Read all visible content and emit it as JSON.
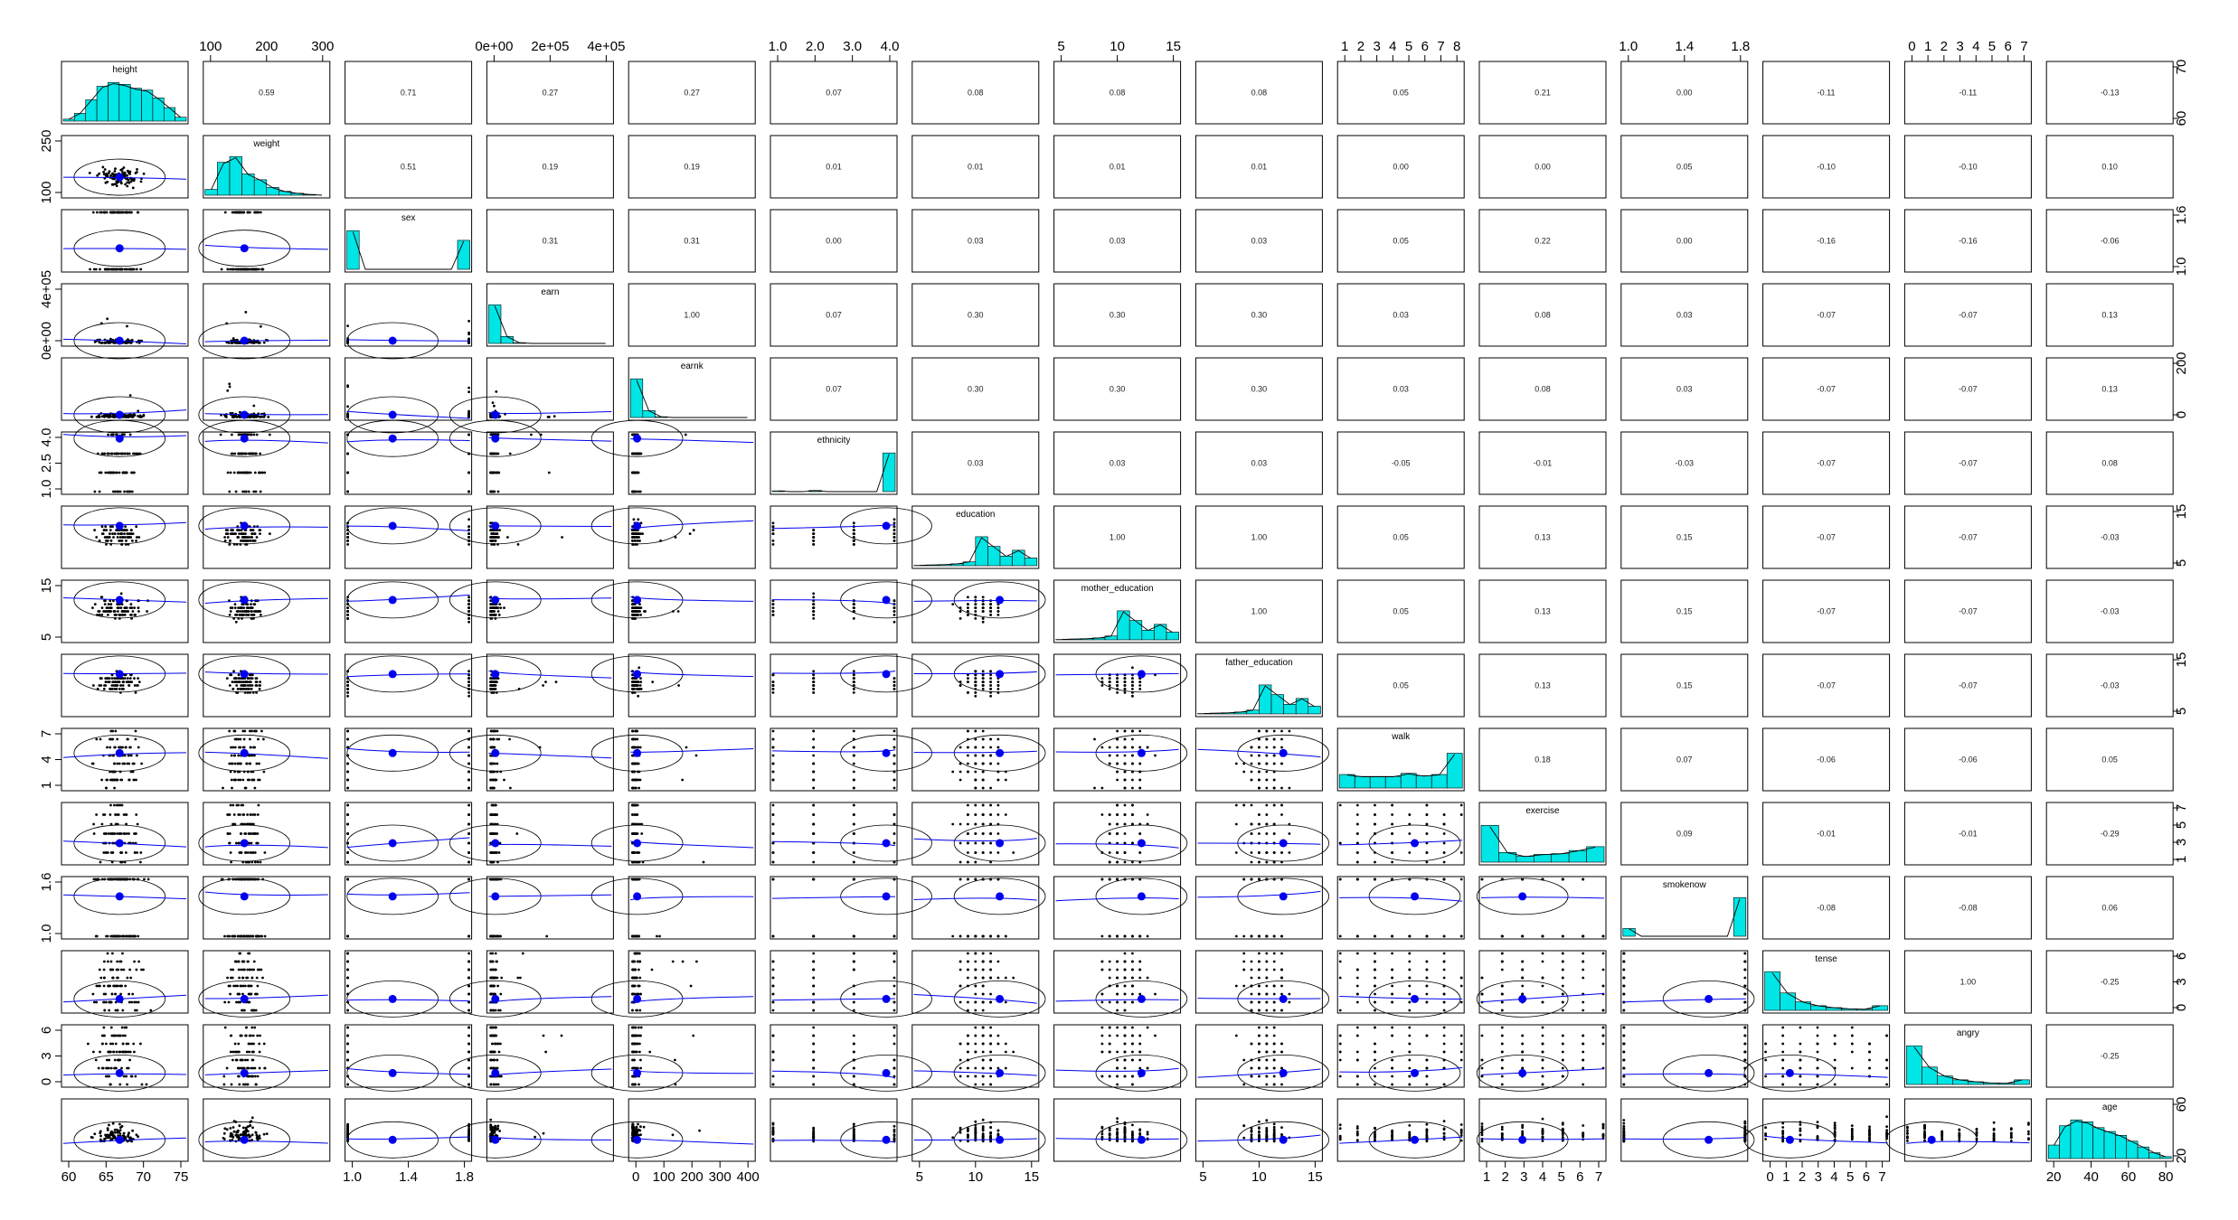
{
  "chart_data": {
    "type": "scatter",
    "subtype": "pairs-panels (scatterplot matrix)",
    "variables": [
      "height",
      "weight",
      "sex",
      "earn",
      "earnk",
      "ethnicity",
      "education",
      "mother_education",
      "father_education",
      "walk",
      "exercise",
      "smokenow",
      "tense",
      "angry",
      "age"
    ],
    "ranges": [
      [
        57,
        78
      ],
      [
        80,
        320
      ],
      [
        1,
        2
      ],
      [
        0,
        420000
      ],
      [
        0,
        420
      ],
      [
        1,
        4
      ],
      [
        2,
        18
      ],
      [
        2,
        18
      ],
      [
        2,
        18
      ],
      [
        1,
        8
      ],
      [
        1,
        7
      ],
      [
        1,
        2
      ],
      [
        0,
        7
      ],
      [
        0,
        7
      ],
      [
        18,
        91
      ]
    ],
    "means": [
      66.6,
      156,
      1.37,
      20000,
      20,
      3.8,
      13.2,
      13.2,
      13.2,
      5.3,
      3.0,
      1.7,
      1.4,
      1.4,
      42
    ],
    "correlations": [
      [
        "0.59",
        "0.71",
        "0.27",
        "0.27",
        "0.07",
        "0.08",
        "0.08",
        "0.08",
        "0.05",
        "0.21",
        "0.00",
        "-0.11",
        "-0.11",
        "-0.13"
      ],
      [
        "0.51",
        "0.19",
        "0.19",
        "0.01",
        "0.01",
        "0.01",
        "0.01",
        "0.00",
        "0.00",
        "0.05",
        "-0.10",
        "-0.10",
        "0.10"
      ],
      [
        "0.31",
        "0.31",
        "0.00",
        "0.03",
        "0.03",
        "0.03",
        "0.05",
        "0.22",
        "0.00",
        "-0.16",
        "-0.16",
        "-0.06"
      ],
      [
        "1.00",
        "0.07",
        "0.30",
        "0.30",
        "0.30",
        "0.03",
        "0.08",
        "0.03",
        "-0.07",
        "-0.07",
        "0.13"
      ],
      [
        "0.07",
        "0.30",
        "0.30",
        "0.30",
        "0.03",
        "0.08",
        "0.03",
        "-0.07",
        "-0.07",
        "0.13"
      ],
      [
        "0.03",
        "0.03",
        "0.03",
        "-0.05",
        "-0.01",
        "-0.03",
        "-0.07",
        "-0.07",
        "0.08"
      ],
      [
        "1.00",
        "1.00",
        "0.05",
        "0.13",
        "0.15",
        "-0.07",
        "-0.07",
        "-0.03"
      ],
      [
        "1.00",
        "0.05",
        "0.13",
        "0.15",
        "-0.07",
        "-0.07",
        "-0.03"
      ],
      [
        "0.05",
        "0.13",
        "0.15",
        "-0.07",
        "-0.07",
        "-0.03"
      ],
      [
        "0.18",
        "0.07",
        "-0.06",
        "-0.06",
        "0.05"
      ],
      [
        "0.09",
        "-0.01",
        "-0.01",
        "-0.29"
      ],
      [
        "-0.08",
        "-0.08",
        "0.06"
      ],
      [
        "1.00",
        "-0.25"
      ],
      [
        "-0.25"
      ]
    ],
    "histograms": [
      [
        0.05,
        0.2,
        0.55,
        0.9,
        1.0,
        0.95,
        0.85,
        0.8,
        0.6,
        0.35,
        0.1
      ],
      [
        0.15,
        0.85,
        1.0,
        0.55,
        0.4,
        0.2,
        0.1,
        0.05,
        0.02,
        0.0
      ],
      [
        1.0,
        0,
        0,
        0,
        0,
        0,
        0,
        0,
        0,
        0.75
      ],
      [
        1.0,
        0.18,
        0.02,
        0.0,
        0.0,
        0.0,
        0.0,
        0.0,
        0.0,
        0.0
      ],
      [
        1.0,
        0.18,
        0.02,
        0.0,
        0.0,
        0.0,
        0.0,
        0.0,
        0.0,
        0.0
      ],
      [
        0.02,
        0,
        0,
        0.03,
        0,
        0,
        0,
        0,
        0,
        1.0
      ],
      [
        0.01,
        0.02,
        0.03,
        0.05,
        0.1,
        0.75,
        0.5,
        0.25,
        0.4,
        0.2
      ],
      [
        0.01,
        0.02,
        0.03,
        0.05,
        0.1,
        0.75,
        0.5,
        0.25,
        0.4,
        0.2
      ],
      [
        0.01,
        0.02,
        0.03,
        0.05,
        0.1,
        0.75,
        0.5,
        0.25,
        0.4,
        0.2
      ],
      [
        0.35,
        0.3,
        0.3,
        0.3,
        0.38,
        0.32,
        0.35,
        0.9
      ],
      [
        0.95,
        0.25,
        0.15,
        0.2,
        0.22,
        0.3,
        0.4
      ],
      [
        0.2,
        0,
        0,
        0,
        0,
        0,
        0,
        0,
        0,
        1.0
      ],
      [
        1.0,
        0.45,
        0.22,
        0.12,
        0.07,
        0.04,
        0.03,
        0.12
      ],
      [
        1.0,
        0.45,
        0.22,
        0.12,
        0.07,
        0.04,
        0.03,
        0.12
      ],
      [
        0.35,
        0.85,
        1.0,
        0.95,
        0.8,
        0.7,
        0.6,
        0.45,
        0.3,
        0.15,
        0.05
      ]
    ],
    "top_axis": {
      "1": [
        "100",
        "200",
        "300"
      ],
      "3": [
        "0e+00",
        "2e+05",
        "4e+05"
      ],
      "5": [
        "1.0",
        "2.0",
        "3.0",
        "4.0"
      ],
      "7": [
        "5",
        "10",
        "15"
      ],
      "9": [
        "1",
        "2",
        "3",
        "4",
        "5",
        "6",
        "7",
        "8"
      ],
      "11": [
        "1.0",
        "1.4",
        "1.8"
      ],
      "13": [
        "0",
        "1",
        "2",
        "3",
        "4",
        "5",
        "6",
        "7"
      ]
    },
    "bottom_axis": {
      "0": [
        "60",
        "65",
        "70",
        "75"
      ],
      "2": [
        "1.0",
        "1.4",
        "1.8"
      ],
      "4": [
        "0",
        "100",
        "200",
        "300",
        "400"
      ],
      "6": [
        "5",
        "10",
        "15"
      ],
      "8": [
        "5",
        "10",
        "15"
      ],
      "10": [
        "1",
        "2",
        "3",
        "4",
        "5",
        "6",
        "7"
      ],
      "12": [
        "0",
        "1",
        "2",
        "3",
        "4",
        "5",
        "6",
        "7"
      ],
      "14": [
        "20",
        "40",
        "60",
        "80"
      ]
    },
    "left_axis": {
      "1": [
        "100",
        "250"
      ],
      "3": [
        "0e+00",
        "4e+05"
      ],
      "5": [
        "1.0",
        "2.5",
        "4.0"
      ],
      "7": [
        "5",
        "15"
      ],
      "9": [
        "1",
        "4",
        "7"
      ],
      "11": [
        "1.0",
        "1.6"
      ],
      "13": [
        "0",
        "3",
        "6"
      ]
    },
    "right_axis": {
      "0": [
        "60",
        "70"
      ],
      "2": [
        "1.0",
        "1.6"
      ],
      "4": [
        "0",
        "200"
      ],
      "6": [
        "5",
        "15"
      ],
      "8": [
        "5",
        "15"
      ],
      "10": [
        "1",
        "3",
        "5",
        "7"
      ],
      "12": [
        "0",
        "3",
        "6"
      ],
      "14": [
        "20",
        "60"
      ]
    },
    "colors": {
      "hist_fill": "#00e5e5",
      "points": "#000000",
      "mean_point": "#0000ee",
      "smoother": "#0000ee",
      "frame": "#000000"
    }
  }
}
